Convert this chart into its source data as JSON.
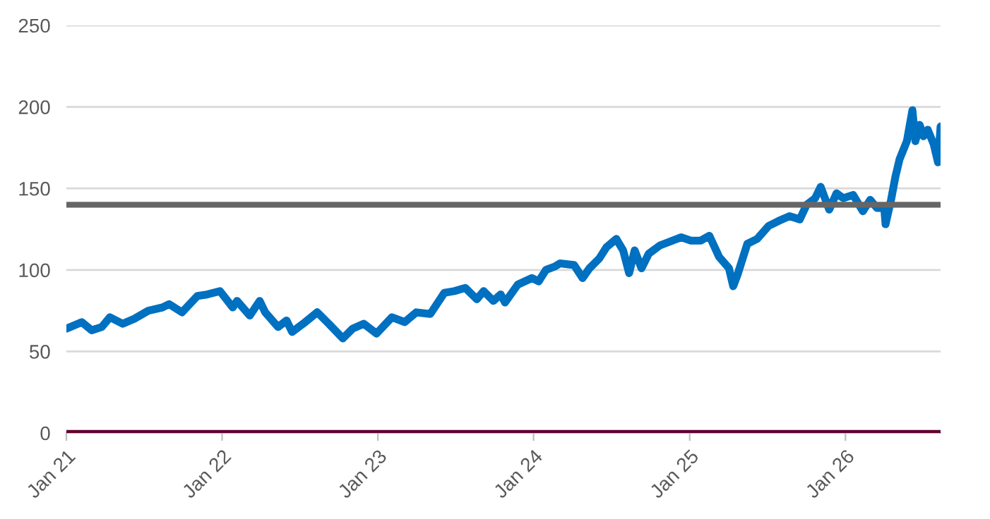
{
  "chart_data": {
    "type": "line",
    "x": [
      "2021-01-01",
      "2021-02-06",
      "2021-03-01",
      "2021-03-25",
      "2021-04-13",
      "2021-05-13",
      "2021-06-09",
      "2021-07-12",
      "2021-08-14",
      "2021-08-30",
      "2021-09-29",
      "2021-11-04",
      "2021-11-28",
      "2021-12-27",
      "2022-01-26",
      "2022-02-05",
      "2022-03-07",
      "2022-03-30",
      "2022-04-12",
      "2022-05-12",
      "2022-06-01",
      "2022-06-14",
      "2022-07-10",
      "2022-08-12",
      "2022-09-08",
      "2022-10-11",
      "2022-11-03",
      "2022-11-29",
      "2022-12-29",
      "2023-02-03",
      "2023-03-05",
      "2023-04-01",
      "2023-05-04",
      "2023-06-06",
      "2023-06-29",
      "2023-07-25",
      "2023-08-21",
      "2023-09-06",
      "2023-09-29",
      "2023-10-16",
      "2023-10-26",
      "2023-11-25",
      "2023-12-28",
      "2024-01-13",
      "2024-01-30",
      "2024-02-19",
      "2024-03-03",
      "2024-04-05",
      "2024-04-25",
      "2024-05-11",
      "2024-06-03",
      "2024-06-20",
      "2024-07-13",
      "2024-07-29",
      "2024-08-12",
      "2024-08-25",
      "2024-09-10",
      "2024-09-27",
      "2024-10-23",
      "2024-11-22",
      "2024-12-12",
      "2025-01-04",
      "2025-01-27",
      "2025-02-16",
      "2025-03-11",
      "2025-04-03",
      "2025-04-13",
      "2025-04-23",
      "2025-05-16",
      "2025-06-08",
      "2025-07-05",
      "2025-07-28",
      "2025-08-23",
      "2025-09-16",
      "2025-10-02",
      "2025-10-22",
      "2025-11-04",
      "2025-11-14",
      "2025-11-24",
      "2025-12-11",
      "2025-12-27",
      "2026-01-19",
      "2026-02-11",
      "2026-02-28",
      "2026-03-16",
      "2026-04-02",
      "2026-04-05",
      "2026-04-18",
      "2026-04-28",
      "2026-05-08",
      "2026-05-25",
      "2026-06-07",
      "2026-06-14",
      "2026-06-24",
      "2026-07-03",
      "2026-07-13",
      "2026-07-27",
      "2026-08-06",
      "2026-08-12"
    ],
    "series": [
      {
        "color": "#0070c0",
        "values": [
          64,
          68,
          63,
          65,
          71,
          67,
          70,
          75,
          77,
          79,
          74,
          84,
          85,
          87,
          77,
          81,
          72,
          81,
          74,
          65,
          69,
          62,
          67,
          74,
          67,
          58,
          64,
          67,
          61,
          71,
          68,
          74,
          73,
          86,
          87,
          89,
          82,
          87,
          81,
          85,
          80,
          91,
          95,
          93,
          100,
          102,
          104,
          103,
          95,
          101,
          107,
          114,
          119,
          112,
          98,
          112,
          101,
          110,
          115,
          118,
          120,
          118,
          118,
          121,
          108,
          101,
          90,
          97,
          116,
          119,
          127,
          130,
          133,
          131,
          140,
          144,
          151,
          144,
          137,
          147,
          144,
          146,
          136,
          143,
          138,
          138,
          128,
          143,
          157,
          168,
          179,
          198,
          179,
          189,
          182,
          186,
          177,
          166,
          188
        ]
      }
    ],
    "xlim": [
      "2021-01-01",
      "2026-08-12"
    ],
    "xticks": [
      {
        "value": "2021-01-01",
        "label": "Jan 21"
      },
      {
        "value": "2022-01-01",
        "label": "Jan 22"
      },
      {
        "value": "2023-01-01",
        "label": "Jan 23"
      },
      {
        "value": "2024-01-01",
        "label": "Jan 24"
      },
      {
        "value": "2025-01-01",
        "label": "Jan 25"
      },
      {
        "value": "2026-01-01",
        "label": "Jan 26"
      }
    ],
    "ylim": [
      0,
      250
    ],
    "yticks": [
      0,
      50,
      100,
      150,
      200,
      250
    ],
    "ref_lines": [
      {
        "axis": "y",
        "value": 140,
        "color": "#666666"
      },
      {
        "axis": "y",
        "value": 0,
        "color": "#600030"
      }
    ],
    "grid": "y",
    "legend": false,
    "marker": "none",
    "line_style": "solid"
  }
}
